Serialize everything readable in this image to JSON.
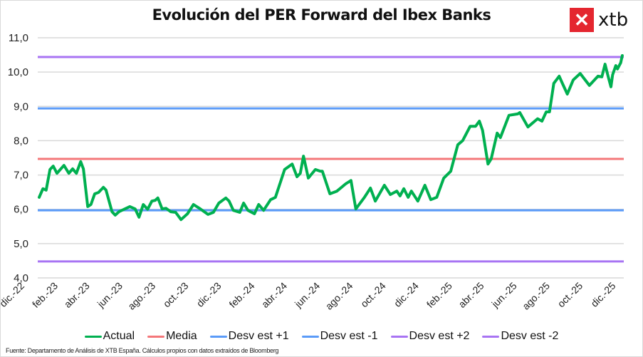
{
  "chart_data": {
    "type": "line",
    "title": "Evolución del PER Forward del Ibex Banks",
    "xlabel": "",
    "ylabel": "",
    "ylim": [
      4.0,
      11.0
    ],
    "yticks": [
      "4,0",
      "5,0",
      "6,0",
      "7,0",
      "8,0",
      "9,0",
      "10,0",
      "11,0"
    ],
    "grid": true,
    "legend_position": "bottom",
    "x_tick_labels": [
      "dic.-22",
      "feb.-23",
      "abr.-23",
      "jun.-23",
      "ago.-23",
      "oct.-23",
      "dic.-23",
      "feb.-24",
      "abr.-24",
      "jun.-24",
      "ago.-24",
      "oct.-24",
      "dic.-24",
      "feb.-25",
      "abr.-25",
      "jun.-25",
      "ago.-25",
      "oct.-25",
      "dic.-25"
    ],
    "x_tick_dates": [
      "2022-12-01",
      "2023-02-01",
      "2023-04-01",
      "2023-06-01",
      "2023-08-01",
      "2023-10-01",
      "2023-12-01",
      "2024-02-01",
      "2024-04-01",
      "2024-06-01",
      "2024-08-01",
      "2024-10-01",
      "2024-12-01",
      "2025-02-01",
      "2025-04-01",
      "2025-06-01",
      "2025-08-01",
      "2025-10-01",
      "2025-12-01"
    ],
    "series": [
      {
        "name": "Actual",
        "color": "#00b050",
        "points": [
          [
            "2022-12-30",
            6.35
          ],
          [
            "2023-01-06",
            6.6
          ],
          [
            "2023-01-12",
            6.56
          ],
          [
            "2023-01-19",
            7.16
          ],
          [
            "2023-01-25",
            7.26
          ],
          [
            "2023-02-01",
            7.05
          ],
          [
            "2023-02-14",
            7.28
          ],
          [
            "2023-02-23",
            7.05
          ],
          [
            "2023-03-02",
            7.18
          ],
          [
            "2023-03-09",
            7.05
          ],
          [
            "2023-03-17",
            7.39
          ],
          [
            "2023-03-22",
            7.18
          ],
          [
            "2023-03-30",
            6.08
          ],
          [
            "2023-04-05",
            6.14
          ],
          [
            "2023-04-12",
            6.45
          ],
          [
            "2023-04-19",
            6.49
          ],
          [
            "2023-04-28",
            6.64
          ],
          [
            "2023-05-03",
            6.56
          ],
          [
            "2023-05-14",
            5.93
          ],
          [
            "2023-05-20",
            5.83
          ],
          [
            "2023-05-27",
            5.93
          ],
          [
            "2023-06-16",
            6.08
          ],
          [
            "2023-06-26",
            6.01
          ],
          [
            "2023-07-03",
            5.77
          ],
          [
            "2023-07-11",
            6.14
          ],
          [
            "2023-07-19",
            6.0
          ],
          [
            "2023-07-27",
            6.24
          ],
          [
            "2023-08-02",
            6.26
          ],
          [
            "2023-08-07",
            6.33
          ],
          [
            "2023-08-15",
            6.01
          ],
          [
            "2023-08-22",
            6.03
          ],
          [
            "2023-08-31",
            5.93
          ],
          [
            "2023-09-09",
            5.91
          ],
          [
            "2023-09-19",
            5.7
          ],
          [
            "2023-10-01",
            5.87
          ],
          [
            "2023-10-12",
            6.14
          ],
          [
            "2023-10-23",
            6.03
          ],
          [
            "2023-11-08",
            5.85
          ],
          [
            "2023-11-18",
            5.91
          ],
          [
            "2023-11-28",
            6.18
          ],
          [
            "2023-12-11",
            6.33
          ],
          [
            "2023-12-17",
            6.24
          ],
          [
            "2023-12-25",
            5.97
          ],
          [
            "2024-01-06",
            5.91
          ],
          [
            "2024-01-13",
            6.18
          ],
          [
            "2024-01-21",
            5.97
          ],
          [
            "2024-02-02",
            5.87
          ],
          [
            "2024-02-10",
            6.14
          ],
          [
            "2024-02-19",
            5.97
          ],
          [
            "2024-03-03",
            6.28
          ],
          [
            "2024-03-12",
            6.35
          ],
          [
            "2024-03-29",
            7.16
          ],
          [
            "2024-04-12",
            7.32
          ],
          [
            "2024-04-21",
            6.95
          ],
          [
            "2024-04-27",
            7.05
          ],
          [
            "2024-05-03",
            7.55
          ],
          [
            "2024-05-12",
            6.91
          ],
          [
            "2024-05-25",
            7.16
          ],
          [
            "2024-06-03",
            7.11
          ],
          [
            "2024-06-07",
            7.11
          ],
          [
            "2024-06-21",
            6.45
          ],
          [
            "2024-07-04",
            6.53
          ],
          [
            "2024-07-20",
            6.74
          ],
          [
            "2024-07-30",
            6.84
          ],
          [
            "2024-08-08",
            6.01
          ],
          [
            "2024-08-24",
            6.35
          ],
          [
            "2024-09-04",
            6.62
          ],
          [
            "2024-09-13",
            6.24
          ],
          [
            "2024-09-30",
            6.7
          ],
          [
            "2024-10-11",
            6.43
          ],
          [
            "2024-10-23",
            6.53
          ],
          [
            "2024-10-29",
            6.39
          ],
          [
            "2024-11-05",
            6.6
          ],
          [
            "2024-11-13",
            6.35
          ],
          [
            "2024-11-19",
            6.53
          ],
          [
            "2024-12-01",
            6.24
          ],
          [
            "2024-12-14",
            6.7
          ],
          [
            "2024-12-25",
            6.28
          ],
          [
            "2025-01-05",
            6.35
          ],
          [
            "2025-01-18",
            6.91
          ],
          [
            "2025-01-31",
            7.11
          ],
          [
            "2025-02-13",
            7.88
          ],
          [
            "2025-02-22",
            8.0
          ],
          [
            "2025-03-08",
            8.42
          ],
          [
            "2025-03-18",
            8.42
          ],
          [
            "2025-03-25",
            8.57
          ],
          [
            "2025-03-31",
            8.3
          ],
          [
            "2025-04-10",
            7.32
          ],
          [
            "2025-04-16",
            7.47
          ],
          [
            "2025-04-27",
            8.22
          ],
          [
            "2025-05-03",
            8.09
          ],
          [
            "2025-05-19",
            8.74
          ],
          [
            "2025-06-04",
            8.78
          ],
          [
            "2025-06-08",
            8.82
          ],
          [
            "2025-06-23",
            8.4
          ],
          [
            "2025-07-11",
            8.64
          ],
          [
            "2025-07-19",
            8.57
          ],
          [
            "2025-07-27",
            8.84
          ],
          [
            "2025-08-02",
            8.84
          ],
          [
            "2025-08-10",
            9.67
          ],
          [
            "2025-08-20",
            9.88
          ],
          [
            "2025-08-26",
            9.67
          ],
          [
            "2025-09-04",
            9.36
          ],
          [
            "2025-09-15",
            9.77
          ],
          [
            "2025-09-28",
            9.96
          ],
          [
            "2025-10-15",
            9.61
          ],
          [
            "2025-10-31",
            9.88
          ],
          [
            "2025-11-07",
            9.86
          ],
          [
            "2025-11-13",
            10.23
          ],
          [
            "2025-11-19",
            9.86
          ],
          [
            "2025-11-24",
            9.57
          ],
          [
            "2025-11-27",
            9.92
          ],
          [
            "2025-12-03",
            10.19
          ],
          [
            "2025-12-06",
            10.09
          ],
          [
            "2025-12-12",
            10.27
          ],
          [
            "2025-12-15",
            10.48
          ]
        ]
      },
      {
        "name": "Media",
        "color": "#f4777a",
        "constant": 7.47
      },
      {
        "name": "Desv est +1",
        "color": "#5b9bf8",
        "constant": 8.94
      },
      {
        "name": "Desv est -1",
        "color": "#5b9bf8",
        "constant": 5.97
      },
      {
        "name": "Desv est +2",
        "color": "#a874f3",
        "constant": 10.44
      },
      {
        "name": "Desv est -2",
        "color": "#a874f3",
        "constant": 4.48
      }
    ]
  },
  "logo": {
    "text": "xtb",
    "mark": "✕",
    "color": "#e4262f"
  },
  "footer": "Fuente: Departamento de Análisis de XTB España. Cálculos propios con datos extraídos de Bloomberg"
}
